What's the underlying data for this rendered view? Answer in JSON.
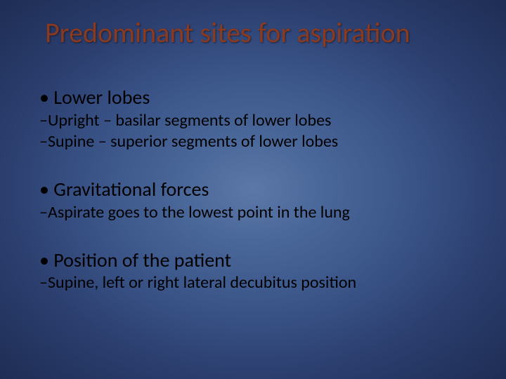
{
  "slide": {
    "title": "Predominant sites for aspiration",
    "background": {
      "gradient_center": "#5b78a8",
      "gradient_mid1": "#4a6799",
      "gradient_mid2": "#3a5488",
      "gradient_outer1": "#2b3e6e",
      "gradient_outer2": "#1e2d54"
    },
    "title_color": "#8b3a1f",
    "text_color": "#000000",
    "title_fontsize": 40,
    "main_bullet_fontsize": 28,
    "sub_bullet_fontsize": 24,
    "sections": [
      {
        "main": "Lower lobes",
        "subs": [
          "Upright – basilar segments of lower lobes",
          "Supine – superior segments of lower lobes"
        ]
      },
      {
        "main": "Gravitational forces",
        "subs": [
          "Aspirate goes to the lowest point in the lung"
        ]
      },
      {
        "main": "Position of the patient",
        "subs": [
          "Supine, left or right lateral decubitus position"
        ]
      }
    ]
  }
}
